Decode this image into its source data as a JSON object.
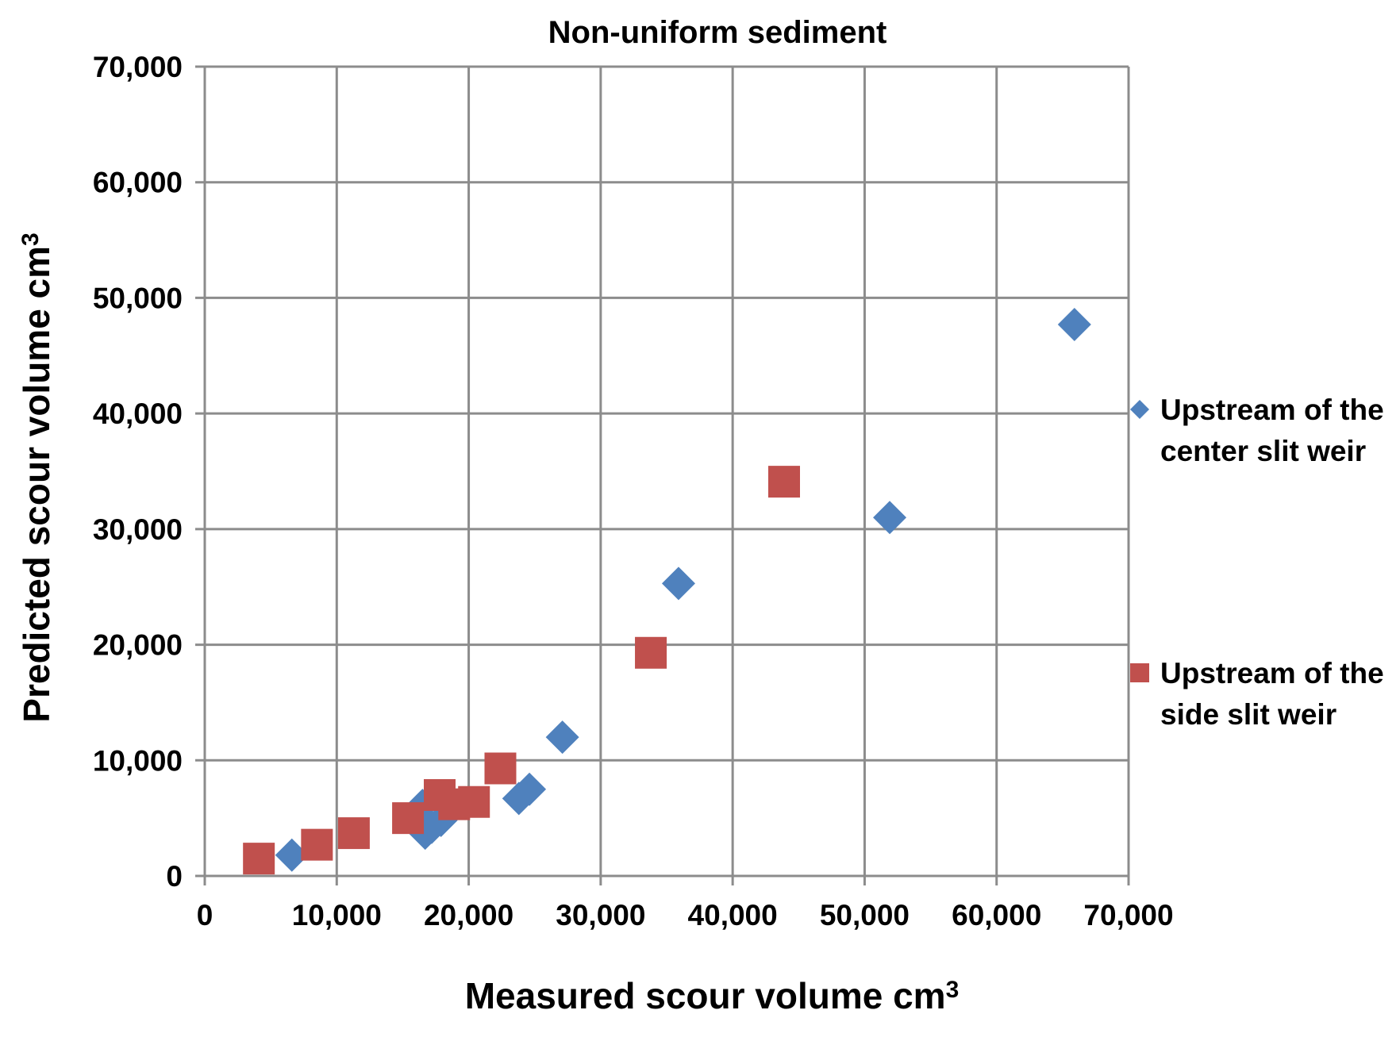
{
  "chart_data": {
    "type": "scatter",
    "title": "Non-uniform sediment",
    "xlabel": "Measured scour volume cm",
    "xlabel_superscript": "3",
    "ylabel": "Predicted scour volume cm",
    "ylabel_superscript": "3",
    "xlim": [
      0,
      70000
    ],
    "ylim": [
      0,
      70000
    ],
    "x_ticks": [
      "0",
      "10,000",
      "20,000",
      "30,000",
      "40,000",
      "50,000",
      "60,000",
      "70,000"
    ],
    "y_ticks": [
      "0",
      "10,000",
      "20,000",
      "30,000",
      "40,000",
      "50,000",
      "60,000",
      "70,000"
    ],
    "grid": true,
    "legend_position": "right",
    "series": [
      {
        "name": "Upstream of the center slit weir",
        "legend_lines": [
          "Upstream of the",
          "center slit weir"
        ],
        "marker": "diamond",
        "color": "#4f81bd",
        "points": [
          [
            6600,
            1800
          ],
          [
            16700,
            3700
          ],
          [
            17200,
            4200
          ],
          [
            17900,
            4800
          ],
          [
            16500,
            6100
          ],
          [
            23800,
            6700
          ],
          [
            24600,
            7500
          ],
          [
            27100,
            12000
          ],
          [
            35900,
            25300
          ],
          [
            51900,
            31000
          ],
          [
            65900,
            47700
          ]
        ]
      },
      {
        "name": "Upstream of the side slit weir",
        "legend_lines": [
          "Upstream of the",
          "side slit weir"
        ],
        "marker": "square",
        "color": "#c0504d",
        "points": [
          [
            4100,
            1500
          ],
          [
            8500,
            2700
          ],
          [
            11300,
            3700
          ],
          [
            15400,
            5000
          ],
          [
            17800,
            7000
          ],
          [
            18900,
            6200
          ],
          [
            20400,
            6400
          ],
          [
            22400,
            9300
          ],
          [
            33800,
            19300
          ],
          [
            43900,
            34100
          ]
        ]
      }
    ]
  }
}
